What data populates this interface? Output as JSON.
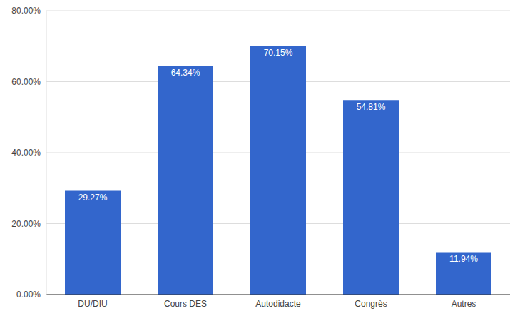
{
  "chart_data": {
    "type": "bar",
    "categories": [
      "DU/DIU",
      "Cours DES",
      "Autodidacte",
      "Congrès",
      "Autres"
    ],
    "values": [
      29.27,
      64.34,
      70.15,
      54.81,
      11.94
    ],
    "value_labels": [
      "29.27%",
      "64.34%",
      "70.15%",
      "54.81%",
      "11.94%"
    ],
    "color": "#3366cc",
    "ylim": [
      0,
      80
    ],
    "yticks": [
      {
        "value": 0,
        "label": "0.00%"
      },
      {
        "value": 20,
        "label": "20.00%"
      },
      {
        "value": 40,
        "label": "40.00%"
      },
      {
        "value": 60,
        "label": "60.00%"
      },
      {
        "value": 80,
        "label": "80.00%"
      }
    ],
    "grid": true,
    "data_labels": true
  }
}
